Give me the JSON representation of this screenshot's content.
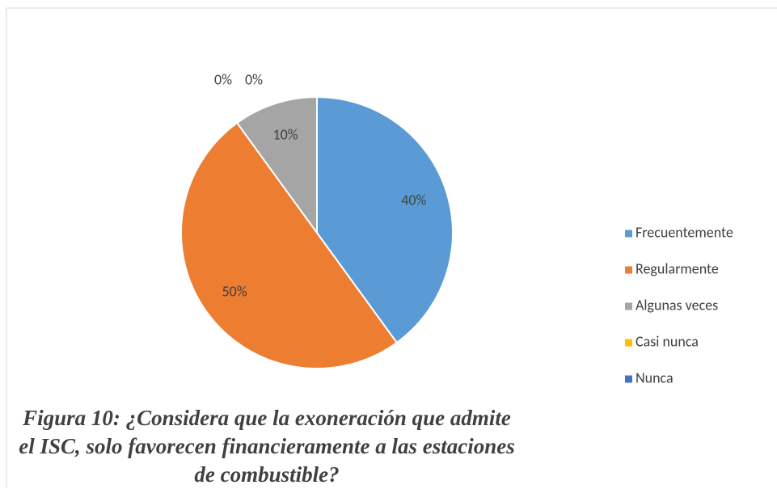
{
  "chart_data": {
    "type": "pie",
    "categories": [
      "Frecuentemente",
      "Regularmente",
      "Algunas veces",
      "Casi nunca",
      "Nunca"
    ],
    "values": [
      40,
      50,
      10,
      0,
      0
    ],
    "value_labels": [
      "40%",
      "50%",
      "10%",
      "0%",
      "0%"
    ],
    "colors": [
      "#5b9bd5",
      "#ed7d31",
      "#a5a5a5",
      "#ffc000",
      "#4472c4"
    ],
    "legend": "right",
    "caption": "Figura 10: ¿Considera que la exoneración que admite el ISC, solo favorecen financieramente a las estaciones de combustible?"
  }
}
